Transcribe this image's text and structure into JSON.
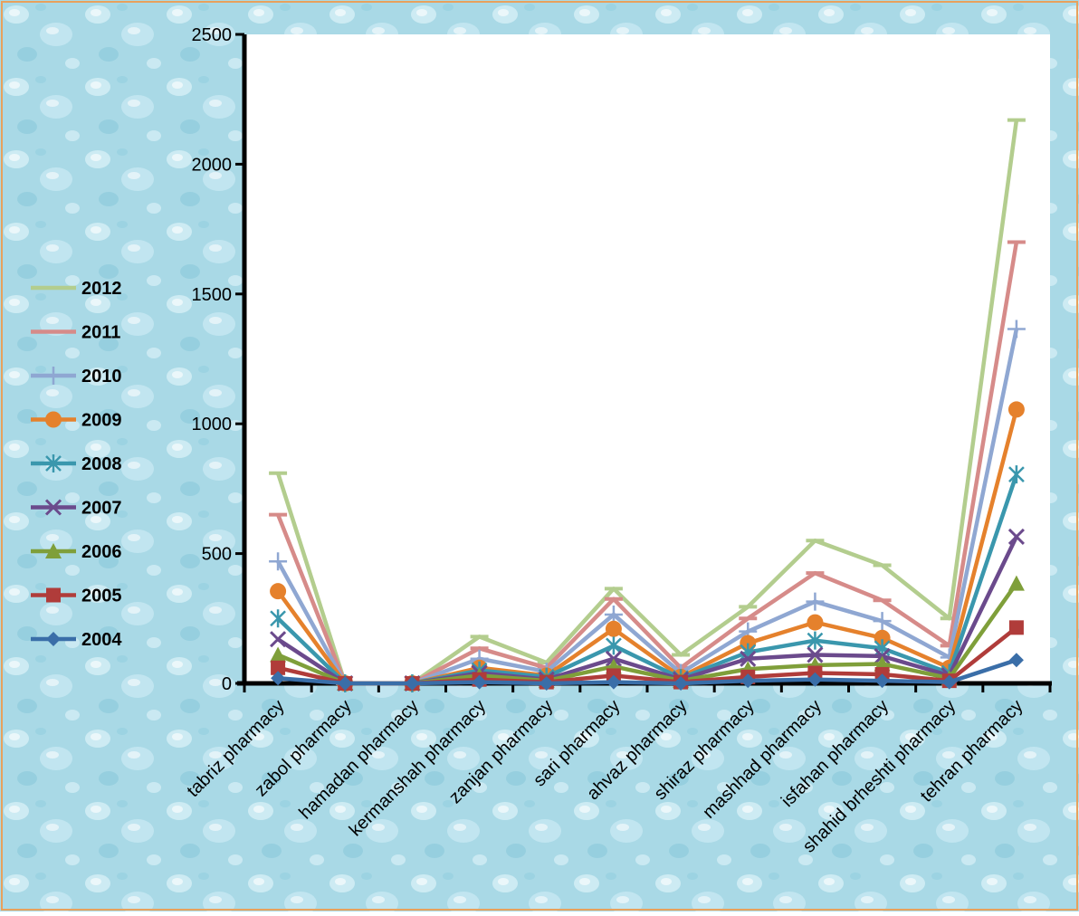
{
  "chart_data": {
    "type": "line",
    "title": "",
    "xlabel": "",
    "ylabel": "",
    "ylim": [
      0,
      2500
    ],
    "yticks": [
      0,
      500,
      1000,
      1500,
      2000,
      2500
    ],
    "grid": false,
    "legend_position": "left",
    "categories": [
      "tabriz pharmacy",
      "zabol pharmacy",
      "hamadan pharmacy",
      "kermanshah pharmacy",
      "zanjan pharmacy",
      "sari pharmacy",
      "ahvaz pharmacy",
      "shiraz pharmacy",
      "mashhad pharmacy",
      "isfahan pharmacy",
      "shahid brheshti pharmacy",
      "tehran pharmacy"
    ],
    "series": [
      {
        "name": "2004",
        "color": "#3a6ea8",
        "marker": "diamond",
        "values": [
          20,
          0,
          0,
          5,
          0,
          5,
          0,
          10,
          15,
          10,
          5,
          90
        ]
      },
      {
        "name": "2005",
        "color": "#b03c3a",
        "marker": "square",
        "values": [
          60,
          0,
          0,
          15,
          5,
          30,
          5,
          25,
          40,
          35,
          10,
          215
        ]
      },
      {
        "name": "2006",
        "color": "#7f9f3a",
        "marker": "triangle",
        "values": [
          110,
          0,
          0,
          30,
          10,
          65,
          10,
          55,
          70,
          75,
          20,
          385
        ]
      },
      {
        "name": "2007",
        "color": "#6b4a8c",
        "marker": "x",
        "values": [
          170,
          0,
          0,
          40,
          15,
          95,
          15,
          95,
          110,
          105,
          30,
          565
        ]
      },
      {
        "name": "2008",
        "color": "#3a97ad",
        "marker": "star",
        "values": [
          250,
          0,
          0,
          50,
          25,
          145,
          20,
          120,
          165,
          135,
          40,
          805
        ]
      },
      {
        "name": "2009",
        "color": "#e5812c",
        "marker": "circle",
        "values": [
          355,
          0,
          0,
          60,
          30,
          210,
          25,
          155,
          235,
          175,
          60,
          1055
        ]
      },
      {
        "name": "2010",
        "color": "#8fa7d2",
        "marker": "plus",
        "values": [
          470,
          0,
          0,
          95,
          45,
          265,
          40,
          200,
          315,
          240,
          100,
          1365
        ]
      },
      {
        "name": "2011",
        "color": "#d68b89",
        "marker": "dash",
        "values": [
          650,
          0,
          0,
          135,
          60,
          325,
          60,
          250,
          425,
          320,
          145,
          1700
        ]
      },
      {
        "name": "2012",
        "color": "#b3cd8e",
        "marker": "dash",
        "values": [
          810,
          0,
          0,
          180,
          80,
          365,
          110,
          295,
          550,
          455,
          250,
          2170
        ]
      }
    ]
  }
}
